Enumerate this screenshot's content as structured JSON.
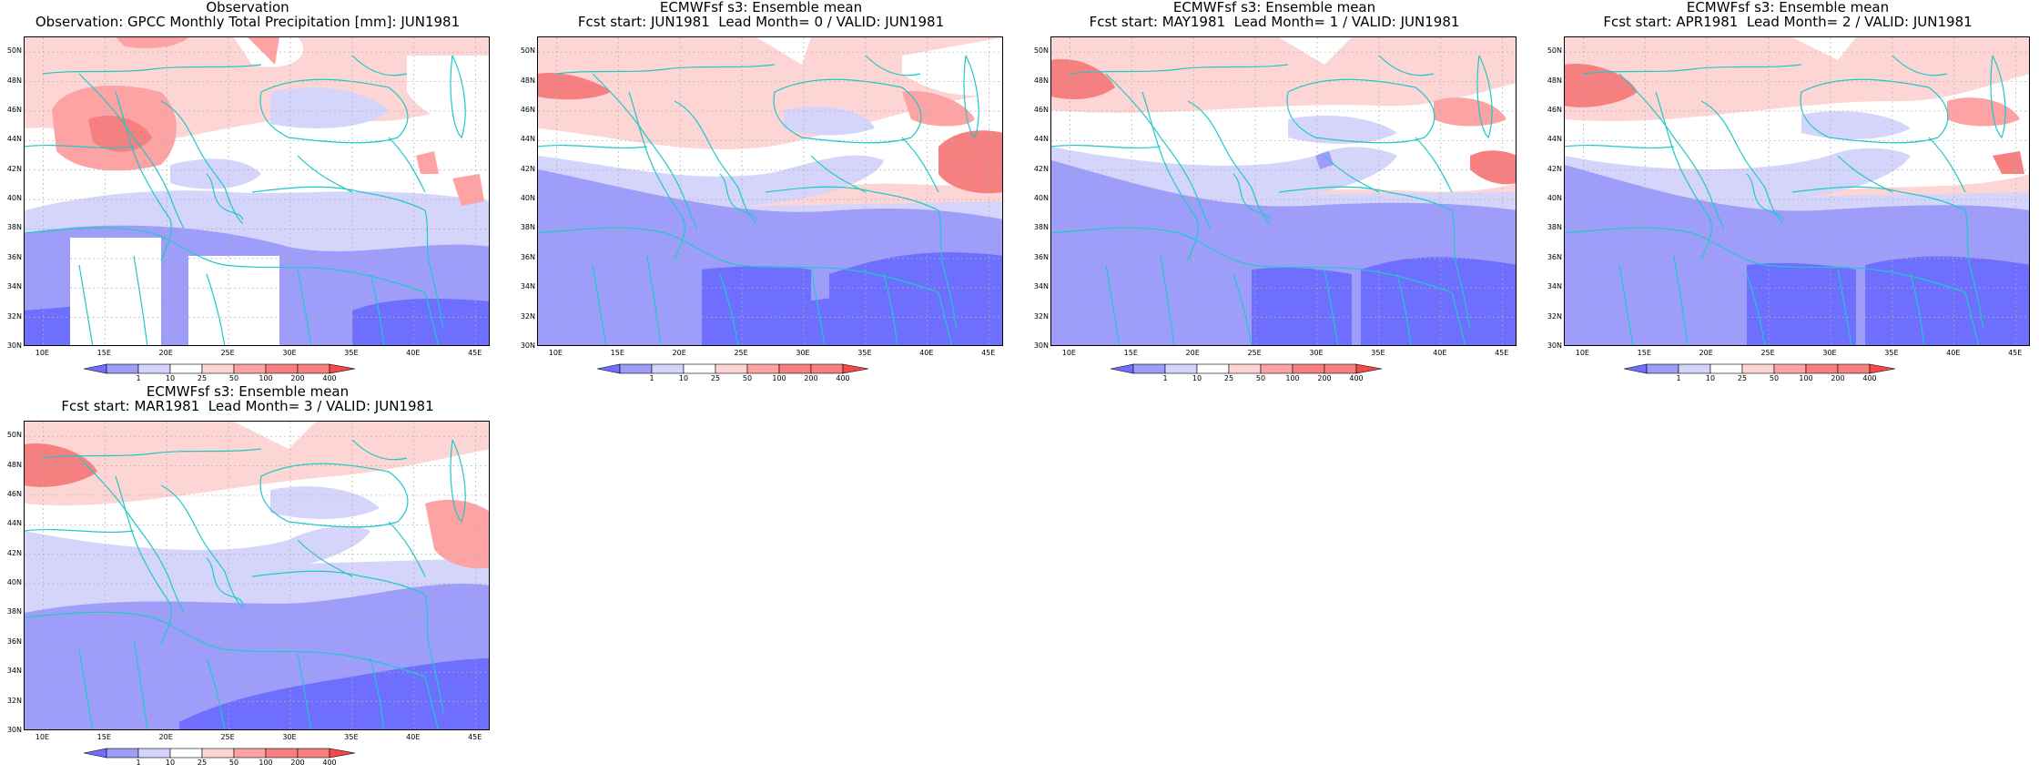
{
  "colors": {
    "lt1": "#6e6eff",
    "lt10": "#9e9efa",
    "lt25": "#d5d5fc",
    "mid": "#ffffff",
    "gt50": "#fed5d5",
    "gt100": "#fea3a3",
    "gt200": "#f68080",
    "gt400": "#f44a4a",
    "coast": "#20c8c8"
  },
  "legend": {
    "ticks": [
      "1",
      "10",
      "25",
      "50",
      "100",
      "200",
      "400"
    ]
  },
  "map": {
    "lon_ticks": [
      "10E",
      "15E",
      "20E",
      "25E",
      "30E",
      "35E",
      "40E",
      "45E"
    ],
    "lat_ticks": [
      "50N",
      "48N",
      "46N",
      "44N",
      "42N",
      "40N",
      "38N",
      "36N",
      "34N",
      "32N",
      "30N"
    ]
  },
  "panels": [
    {
      "title1": "Observation",
      "title2": "Observation: GPCC Monthly Total Precipitation [mm]: JUN1981"
    },
    {
      "title1": "ECMWFsf s3: Ensemble mean",
      "title2": "Fcst start: JUN1981  Lead Month= 0 / VALID: JUN1981"
    },
    {
      "title1": "ECMWFsf s3: Ensemble mean",
      "title2": "Fcst start: MAY1981  Lead Month= 1 / VALID: JUN1981"
    },
    {
      "title1": "ECMWFsf s3: Ensemble mean",
      "title2": "Fcst start: APR1981  Lead Month= 2 / VALID: JUN1981"
    },
    {
      "title1": "ECMWFsf s3: Ensemble mean",
      "title2": "Fcst start: MAR1981  Lead Month= 3 / VALID: JUN1981"
    }
  ]
}
